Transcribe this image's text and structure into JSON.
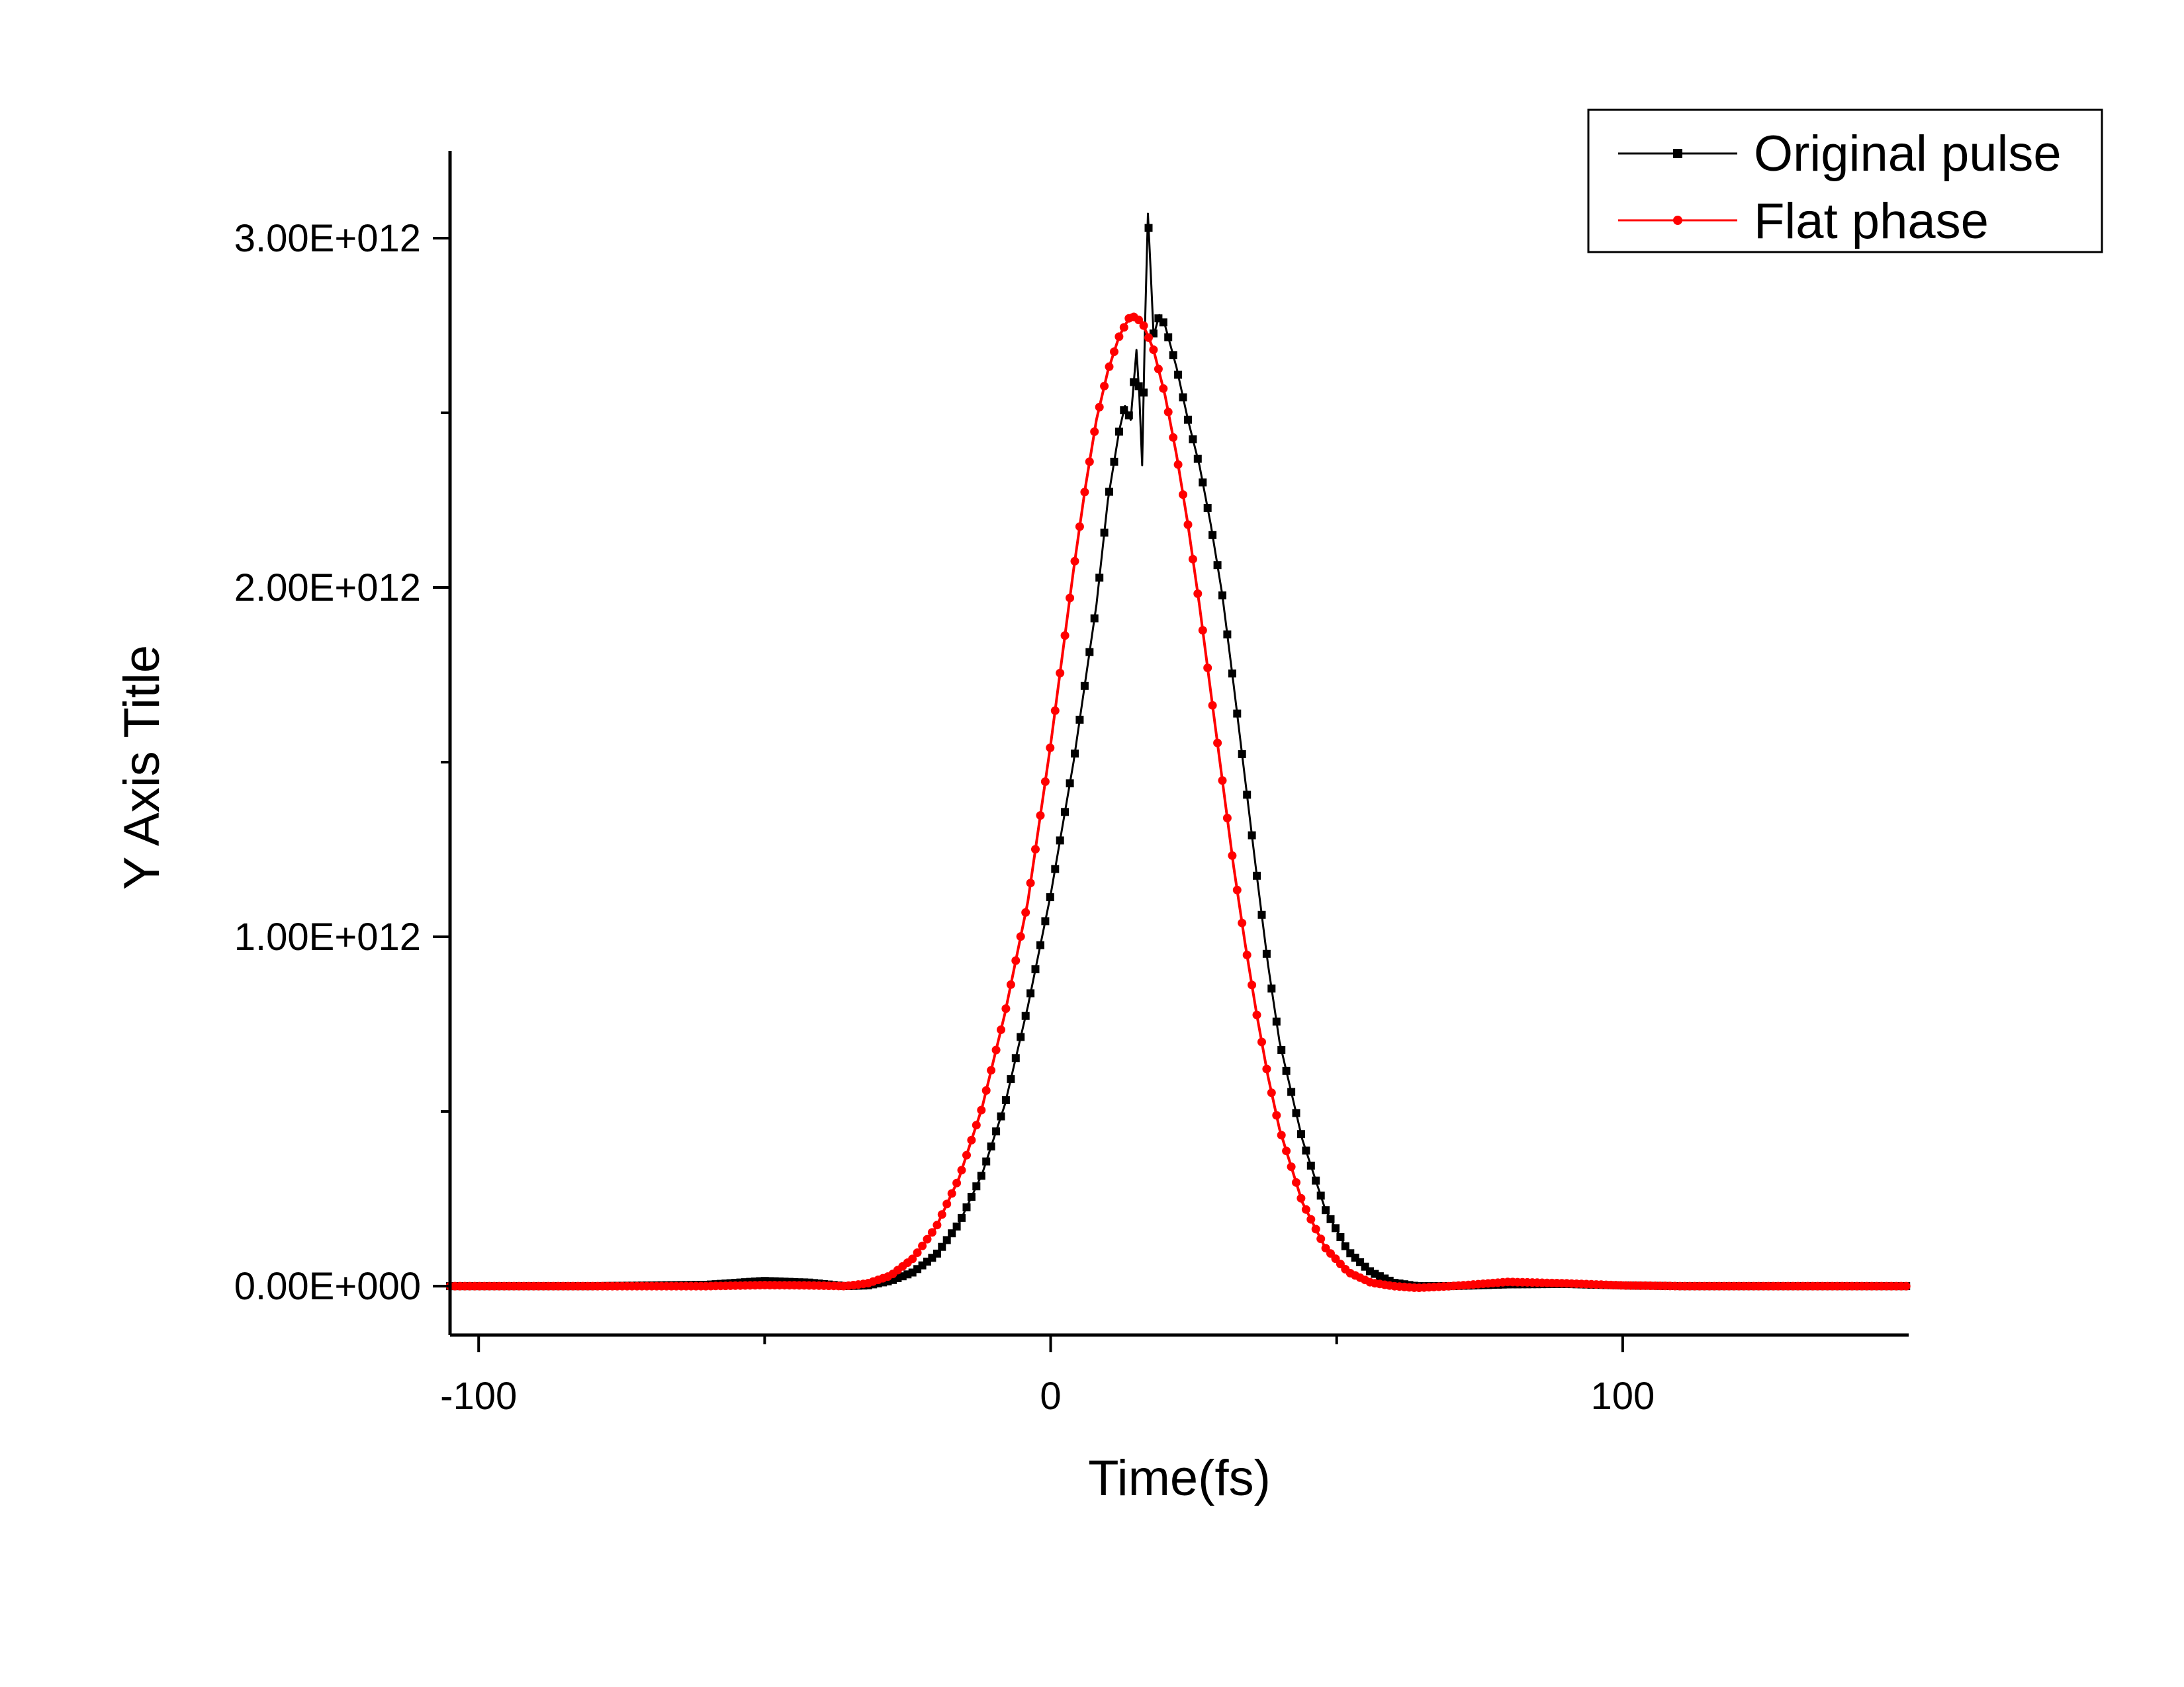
{
  "chart_data": {
    "type": "line",
    "title": "",
    "xlabel": "Time(fs)",
    "ylabel": "Y Axis Title",
    "xlim": [
      -105,
      150
    ],
    "ylim": [
      -140000000000.0,
      3250000000000.0
    ],
    "x_ticks": [
      -100,
      0,
      100
    ],
    "x_tick_labels": [
      "-100",
      "0",
      "100"
    ],
    "x_minor_ticks": [
      -50,
      50
    ],
    "y_ticks": [
      0,
      1000000000000.0,
      2000000000000.0,
      3000000000000.0
    ],
    "y_tick_labels": [
      "0.00E+000",
      "1.00E+012",
      "2.00E+012",
      "3.00E+012"
    ],
    "y_minor_ticks": [
      500000000000.0,
      1500000000000.0,
      2500000000000.0
    ],
    "grid": false,
    "legend_position": "top-right",
    "series": [
      {
        "name": "Original pulse",
        "color": "#000000",
        "marker": "square",
        "points": [
          [
            -105,
            0
          ],
          [
            -80,
            0
          ],
          [
            -60,
            4000000000.0
          ],
          [
            -50,
            15000000000.0
          ],
          [
            -42,
            10000000000.0
          ],
          [
            -36,
            0
          ],
          [
            -32,
            2000000000.0
          ],
          [
            -28,
            15000000000.0
          ],
          [
            -24,
            40000000000.0
          ],
          [
            -20,
            90000000000.0
          ],
          [
            -16,
            180000000000.0
          ],
          [
            -12,
            320000000000.0
          ],
          [
            -8,
            520000000000.0
          ],
          [
            -4,
            800000000000.0
          ],
          [
            0,
            1120000000000.0
          ],
          [
            4,
            1500000000000.0
          ],
          [
            8,
            1950000000000.0
          ],
          [
            10,
            2250000000000.0
          ],
          [
            12,
            2450000000000.0
          ],
          [
            13,
            2520000000000.0
          ],
          [
            14,
            2480000000000.0
          ],
          [
            15,
            2680000000000.0
          ],
          [
            15.5,
            2550000000000.0
          ],
          [
            16,
            2350000000000.0
          ],
          [
            16.5,
            2750000000000.0
          ],
          [
            17,
            3070000000000.0
          ],
          [
            17.5,
            2900000000000.0
          ],
          [
            18,
            2720000000000.0
          ],
          [
            19,
            2780000000000.0
          ],
          [
            20,
            2750000000000.0
          ],
          [
            22,
            2630000000000.0
          ],
          [
            24,
            2480000000000.0
          ],
          [
            26,
            2350000000000.0
          ],
          [
            28,
            2180000000000.0
          ],
          [
            30,
            1980000000000.0
          ],
          [
            32,
            1720000000000.0
          ],
          [
            34,
            1450000000000.0
          ],
          [
            36,
            1180000000000.0
          ],
          [
            38,
            920000000000.0
          ],
          [
            40,
            700000000000.0
          ],
          [
            44,
            420000000000.0
          ],
          [
            48,
            220000000000.0
          ],
          [
            52,
            100000000000.0
          ],
          [
            56,
            40000000000.0
          ],
          [
            60,
            10000000000.0
          ],
          [
            64,
            0
          ],
          [
            70,
            0
          ],
          [
            80,
            5000000000.0
          ],
          [
            90,
            6000000000.0
          ],
          [
            100,
            2000000000.0
          ],
          [
            110,
            0
          ],
          [
            150,
            0
          ]
        ]
      },
      {
        "name": "Flat phase",
        "color": "#ff0000",
        "marker": "circle",
        "points": [
          [
            -105,
            0
          ],
          [
            -80,
            0
          ],
          [
            -60,
            0
          ],
          [
            -50,
            3000000000.0
          ],
          [
            -42,
            2000000000.0
          ],
          [
            -36,
            0
          ],
          [
            -32,
            8000000000.0
          ],
          [
            -28,
            30000000000.0
          ],
          [
            -24,
            80000000000.0
          ],
          [
            -20,
            170000000000.0
          ],
          [
            -16,
            310000000000.0
          ],
          [
            -12,
            510000000000.0
          ],
          [
            -8,
            780000000000.0
          ],
          [
            -4,
            1100000000000.0
          ],
          [
            0,
            1550000000000.0
          ],
          [
            2,
            1800000000000.0
          ],
          [
            4,
            2050000000000.0
          ],
          [
            6,
            2280000000000.0
          ],
          [
            8,
            2480000000000.0
          ],
          [
            10,
            2620000000000.0
          ],
          [
            12,
            2720000000000.0
          ],
          [
            14,
            2780000000000.0
          ],
          [
            16,
            2760000000000.0
          ],
          [
            18,
            2680000000000.0
          ],
          [
            20,
            2550000000000.0
          ],
          [
            22,
            2380000000000.0
          ],
          [
            24,
            2180000000000.0
          ],
          [
            26,
            1950000000000.0
          ],
          [
            28,
            1700000000000.0
          ],
          [
            30,
            1450000000000.0
          ],
          [
            32,
            1200000000000.0
          ],
          [
            34,
            980000000000.0
          ],
          [
            36,
            780000000000.0
          ],
          [
            38,
            600000000000.0
          ],
          [
            40,
            450000000000.0
          ],
          [
            44,
            240000000000.0
          ],
          [
            48,
            110000000000.0
          ],
          [
            52,
            40000000000.0
          ],
          [
            56,
            10000000000.0
          ],
          [
            60,
            0
          ],
          [
            64,
            -5000000000.0
          ],
          [
            70,
            0
          ],
          [
            80,
            12000000000.0
          ],
          [
            90,
            8000000000.0
          ],
          [
            100,
            2000000000.0
          ],
          [
            110,
            0
          ],
          [
            150,
            0
          ]
        ]
      }
    ]
  }
}
